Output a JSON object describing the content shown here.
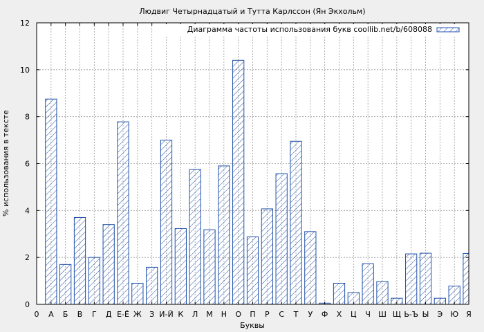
{
  "chart_data": {
    "type": "bar",
    "title": "Людвиг Четырнадцатый и Тутта Карлссон (Ян Экхольм)",
    "xlabel": "Буквы",
    "ylabel": "% использования в тексте",
    "ylim": [
      0,
      12
    ],
    "yticks": [
      "0",
      "2",
      "4",
      "6",
      "8",
      "10",
      "12"
    ],
    "grid": true,
    "legend_position": "top-right",
    "categories": [
      "0",
      "А",
      "Б",
      "В",
      "Г",
      "Д",
      "Е-Ё",
      "Ж",
      "З",
      "И-Й",
      "К",
      "Л",
      "М",
      "Н",
      "О",
      "П",
      "Р",
      "С",
      "Т",
      "У",
      "Ф",
      "Х",
      "Ц",
      "Ч",
      "Ш",
      "Щ",
      "Ь-Ъ",
      "Ы",
      "Э",
      "Ю",
      "Я"
    ],
    "series": [
      {
        "name": "Диаграмма частоты использования букв coollib.net/b/608088",
        "color": "#1f4fa8",
        "values": [
          0,
          8.75,
          1.7,
          3.7,
          2.0,
          3.4,
          7.78,
          0.9,
          1.58,
          7.0,
          3.23,
          5.75,
          3.18,
          5.9,
          10.4,
          2.88,
          4.07,
          5.57,
          6.95,
          3.1,
          0.05,
          0.9,
          0.5,
          1.73,
          0.97,
          0.26,
          2.15,
          2.18,
          0.26,
          0.78,
          2.17
        ]
      }
    ]
  }
}
